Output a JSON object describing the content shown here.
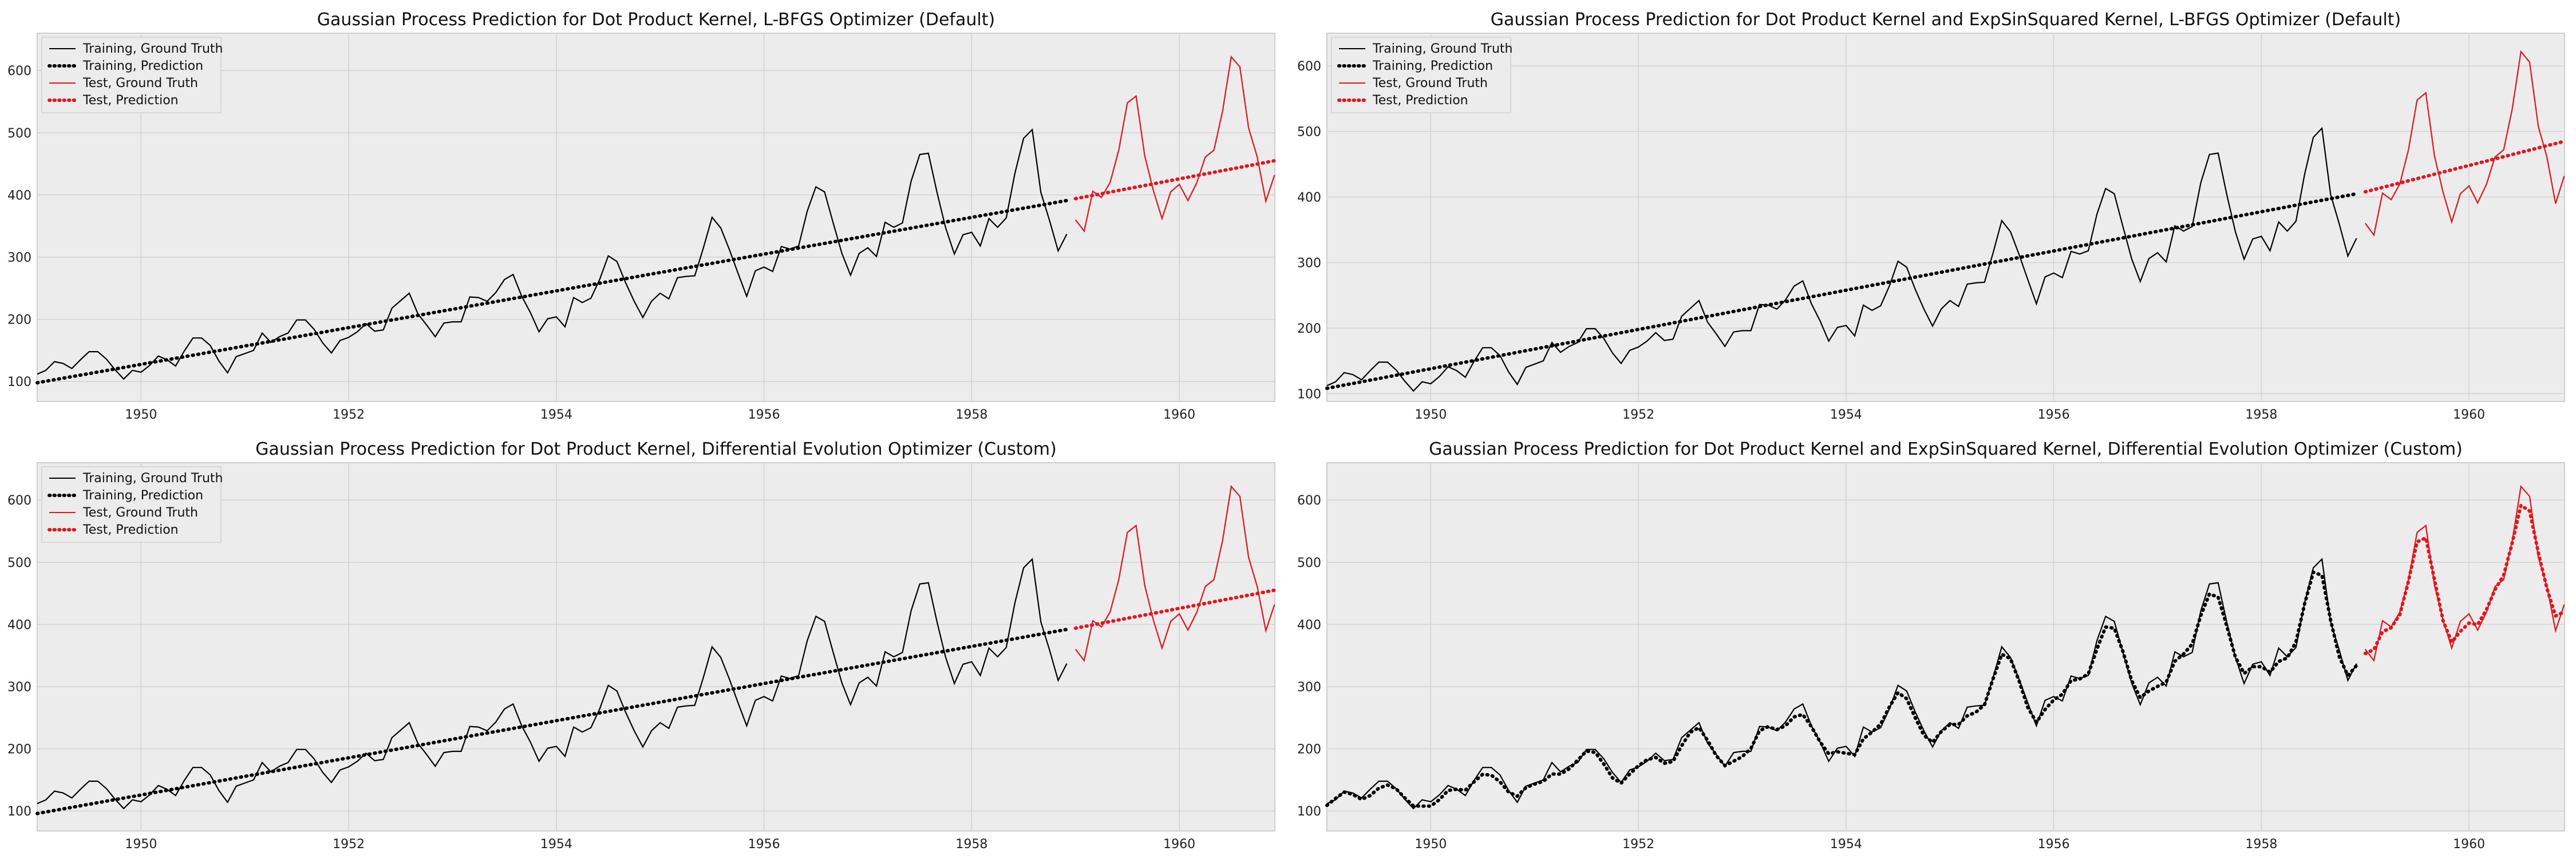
{
  "colors": {
    "training": "#000000",
    "test": "#e8141c",
    "plot_bg": "#ececec",
    "grid": "#d2d2d2"
  },
  "chart_data": [
    {
      "type": "line",
      "title": "Gaussian Process Prediction for Dot Product Kernel, L-BFGS Optimizer (Default)",
      "xlabel": "",
      "ylabel": "",
      "xlim": [
        1949.0,
        1960.92
      ],
      "ylim": [
        68,
        660
      ],
      "xticks": [
        1950,
        1952,
        1954,
        1956,
        1958,
        1960
      ],
      "yticks": [
        100,
        200,
        300,
        400,
        500,
        600
      ],
      "grid": true,
      "legend": "top-left",
      "prediction": {
        "train": {
          "start": 98,
          "end": 391
        },
        "test": {
          "start": 394,
          "end": 455
        }
      },
      "series": [
        {
          "name": "Training, Ground Truth"
        },
        {
          "name": "Training, Prediction"
        },
        {
          "name": "Test, Ground Truth"
        },
        {
          "name": "Test, Prediction"
        }
      ]
    },
    {
      "type": "line",
      "title": "Gaussian Process Prediction for Dot Product Kernel and ExpSinSquared Kernel, L-BFGS Optimizer (Default)",
      "xlabel": "",
      "ylabel": "",
      "xlim": [
        1949.0,
        1960.92
      ],
      "ylim": [
        88,
        650
      ],
      "xticks": [
        1950,
        1952,
        1954,
        1956,
        1958,
        1960
      ],
      "yticks": [
        100,
        200,
        300,
        400,
        500,
        600
      ],
      "grid": true,
      "legend": "top-left",
      "prediction": {
        "train": {
          "start": 108,
          "end": 405
        },
        "test": {
          "start": 408,
          "end": 485
        }
      },
      "series": [
        {
          "name": "Training, Ground Truth"
        },
        {
          "name": "Training, Prediction"
        },
        {
          "name": "Test, Ground Truth"
        },
        {
          "name": "Test, Prediction"
        }
      ]
    },
    {
      "type": "line",
      "title": "Gaussian Process Prediction for Dot Product Kernel, Differential Evolution Optimizer (Custom)",
      "xlabel": "",
      "ylabel": "",
      "xlim": [
        1949.0,
        1960.92
      ],
      "ylim": [
        68,
        660
      ],
      "xticks": [
        1950,
        1952,
        1954,
        1956,
        1958,
        1960
      ],
      "yticks": [
        100,
        200,
        300,
        400,
        500,
        600
      ],
      "grid": true,
      "legend": "top-left",
      "prediction": {
        "train": {
          "start": 96,
          "end": 392
        },
        "test": {
          "start": 394,
          "end": 455
        }
      },
      "series": [
        {
          "name": "Training, Ground Truth"
        },
        {
          "name": "Training, Prediction"
        },
        {
          "name": "Test, Ground Truth"
        },
        {
          "name": "Test, Prediction"
        }
      ]
    },
    {
      "type": "line",
      "title": "Gaussian Process Prediction for Dot Product Kernel and ExpSinSquared Kernel,  Differential Evolution Optimizer (Custom)",
      "xlabel": "",
      "ylabel": "",
      "xlim": [
        1949.0,
        1960.92
      ],
      "ylim": [
        68,
        660
      ],
      "xticks": [
        1950,
        1952,
        1954,
        1956,
        1958,
        1960
      ],
      "yticks": [
        100,
        200,
        300,
        400,
        500,
        600
      ],
      "grid": true,
      "legend": "none",
      "prediction": {
        "seasonal_fit": true
      },
      "series": [
        {
          "name": "Training, Ground Truth"
        },
        {
          "name": "Training, Prediction"
        },
        {
          "name": "Test, Ground Truth"
        },
        {
          "name": "Test, Prediction"
        }
      ]
    }
  ],
  "passengers": {
    "start": "1949-01",
    "values": [
      112,
      118,
      132,
      129,
      121,
      135,
      148,
      148,
      136,
      119,
      104,
      118,
      115,
      126,
      141,
      135,
      125,
      149,
      170,
      170,
      158,
      133,
      114,
      140,
      145,
      150,
      178,
      163,
      172,
      178,
      199,
      199,
      184,
      162,
      146,
      166,
      171,
      180,
      193,
      181,
      183,
      218,
      230,
      242,
      209,
      191,
      172,
      194,
      196,
      196,
      236,
      235,
      229,
      243,
      264,
      272,
      237,
      211,
      180,
      201,
      204,
      188,
      235,
      227,
      234,
      264,
      302,
      293,
      259,
      229,
      203,
      229,
      242,
      233,
      267,
      269,
      270,
      315,
      364,
      347,
      312,
      274,
      237,
      278,
      284,
      277,
      317,
      313,
      318,
      374,
      413,
      405,
      355,
      306,
      271,
      306,
      315,
      301,
      356,
      348,
      355,
      422,
      465,
      467,
      404,
      347,
      305,
      336,
      340,
      318,
      362,
      348,
      363,
      435,
      491,
      505,
      404,
      359,
      310,
      337,
      360,
      342,
      406,
      396,
      420,
      472,
      548,
      559,
      463,
      407,
      362,
      405,
      417,
      391,
      419,
      461,
      472,
      535,
      622,
      606,
      508,
      461,
      390,
      432
    ],
    "test_start": "1959-01"
  }
}
